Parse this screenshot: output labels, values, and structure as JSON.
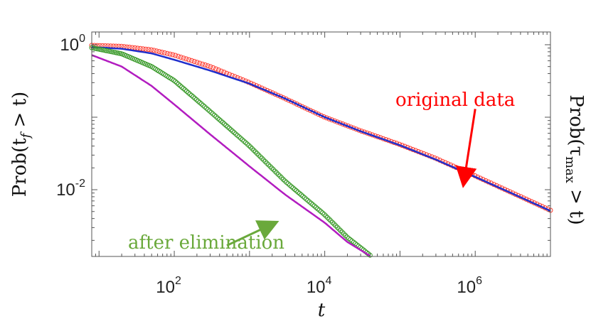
{
  "chart_data": {
    "type": "scatter",
    "xscale": "log",
    "yscale": "log",
    "xlim": [
      8,
      10000000
    ],
    "ylim": [
      0.0012,
      1.5
    ],
    "xticks": [
      {
        "value": 100,
        "label": "10",
        "exp": "2"
      },
      {
        "value": 10000,
        "label": "10",
        "exp": "4"
      },
      {
        "value": 1000000,
        "label": "10",
        "exp": "6"
      }
    ],
    "yticks": [
      {
        "value": 1,
        "label": "10",
        "exp": "0"
      },
      {
        "value": 0.01,
        "label": "10",
        "exp": "-2"
      }
    ],
    "xlabel": "t",
    "ylabel_left": {
      "main": "Prob(t",
      "sub": "f",
      "rest": " > t)"
    },
    "ylabel_right": {
      "main": "Prob(τ",
      "sub": "max",
      "rest": " > t)"
    },
    "grid": false,
    "series": [
      {
        "style": "circles",
        "color": "#ff3b30",
        "points": [
          [
            8,
            0.98
          ],
          [
            20,
            0.95
          ],
          [
            50,
            0.85
          ],
          [
            100,
            0.72
          ],
          [
            300,
            0.5
          ],
          [
            1000,
            0.3
          ],
          [
            3000,
            0.18
          ],
          [
            10000,
            0.1
          ],
          [
            30000,
            0.065
          ],
          [
            100000,
            0.042
          ],
          [
            300000,
            0.027
          ],
          [
            1000000,
            0.0155
          ],
          [
            3000000,
            0.0092
          ],
          [
            10000000,
            0.0052
          ]
        ]
      },
      {
        "style": "line",
        "color": "#1f2ecc",
        "points": [
          [
            8,
            0.93
          ],
          [
            20,
            0.88
          ],
          [
            50,
            0.76
          ],
          [
            100,
            0.62
          ],
          [
            300,
            0.44
          ],
          [
            1000,
            0.29
          ],
          [
            3000,
            0.18
          ],
          [
            10000,
            0.1
          ],
          [
            30000,
            0.064
          ],
          [
            100000,
            0.041
          ],
          [
            300000,
            0.026
          ],
          [
            1000000,
            0.015
          ],
          [
            3000000,
            0.009
          ],
          [
            10000000,
            0.0051
          ]
        ]
      },
      {
        "style": "circles",
        "color": "#3a9a2a",
        "points": [
          [
            8,
            0.91
          ],
          [
            20,
            0.75
          ],
          [
            50,
            0.5
          ],
          [
            100,
            0.32
          ],
          [
            300,
            0.12
          ],
          [
            1000,
            0.04
          ],
          [
            3000,
            0.013
          ],
          [
            10000,
            0.0045
          ],
          [
            20000,
            0.0022
          ],
          [
            40000,
            0.00125
          ]
        ]
      },
      {
        "style": "line",
        "color": "#b21cc0",
        "points": [
          [
            8,
            0.72
          ],
          [
            20,
            0.5
          ],
          [
            50,
            0.27
          ],
          [
            100,
            0.15
          ],
          [
            300,
            0.058
          ],
          [
            1000,
            0.021
          ],
          [
            3000,
            0.0085
          ],
          [
            10000,
            0.0035
          ],
          [
            20000,
            0.0019
          ],
          [
            40000,
            0.00122
          ]
        ]
      }
    ],
    "annotations": [
      {
        "text": "original data",
        "color": "#ff0000",
        "arrow_from": [
          1000000,
          0.13
        ],
        "arrow_to": [
          700000,
          0.012
        ]
      },
      {
        "text": "after elimination",
        "color": "#6aa93b",
        "arrow_from": [
          500,
          0.0017
        ],
        "arrow_to": [
          2200,
          0.0035
        ]
      }
    ]
  }
}
